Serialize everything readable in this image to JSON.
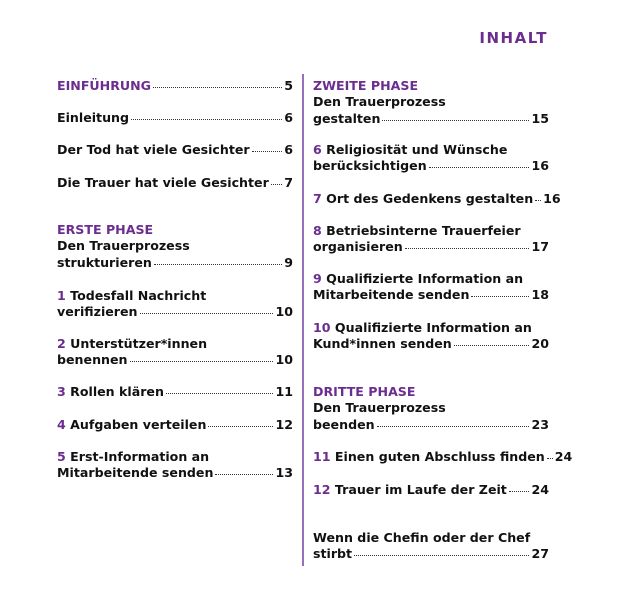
{
  "title": "INHALT",
  "colors": {
    "accent": "#6b2d8f"
  },
  "left": [
    {
      "num": "",
      "lines": [
        "EINFÜHRUNG"
      ],
      "page": "5",
      "heading": true
    },
    {
      "num": "",
      "lines": [
        "Einleitung"
      ],
      "page": "6"
    },
    {
      "num": "",
      "lines": [
        "Der Tod hat viele Gesichter"
      ],
      "page": "6"
    },
    {
      "num": "",
      "lines": [
        "Die Trauer hat viele Gesichter"
      ],
      "page": "7"
    },
    {
      "phase": "ERSTE PHASE",
      "num": "",
      "lines": [
        "Den Trauerprozess",
        "strukturieren"
      ],
      "page": "9"
    },
    {
      "num": "1",
      "lines": [
        "Todesfall Nachricht",
        "verifizieren"
      ],
      "page": "10"
    },
    {
      "num": "2",
      "lines": [
        "Unterstützer*innen",
        "benennen"
      ],
      "page": "10"
    },
    {
      "num": "3",
      "lines": [
        "Rollen klären"
      ],
      "page": "11"
    },
    {
      "num": "4",
      "lines": [
        "Aufgaben verteilen"
      ],
      "page": "12"
    },
    {
      "num": "5",
      "lines": [
        "Erst-Information an",
        "Mitarbeitende senden"
      ],
      "page": "13"
    }
  ],
  "right": [
    {
      "phase": "ZWEITE PHASE",
      "num": "",
      "lines": [
        "Den Trauerprozess",
        "gestalten"
      ],
      "page": "15"
    },
    {
      "num": "6",
      "lines": [
        "Religiosität und Wünsche",
        "berücksichtigen"
      ],
      "page": "16"
    },
    {
      "num": "7",
      "lines": [
        "Ort des Gedenkens gestalten"
      ],
      "page": "16"
    },
    {
      "num": "8",
      "lines": [
        "Betriebsinterne Trauerfeier",
        "organisieren"
      ],
      "page": "17"
    },
    {
      "num": "9",
      "lines": [
        "Qualifizierte Information an",
        "Mitarbeitende senden"
      ],
      "page": "18"
    },
    {
      "num": "10",
      "lines": [
        "Qualifizierte Information an",
        "Kund*innen senden"
      ],
      "page": "20"
    },
    {
      "phase": "DRITTE PHASE",
      "num": "",
      "lines": [
        "Den Trauerprozess",
        "beenden"
      ],
      "page": "23"
    },
    {
      "num": "11",
      "lines": [
        "Einen guten Abschluss finden"
      ],
      "page": "24"
    },
    {
      "num": "12",
      "lines": [
        "Trauer im Laufe der Zeit"
      ],
      "page": "24"
    },
    {
      "num": "",
      "lines": [
        "Wenn die Chefin oder der Chef",
        "stirbt"
      ],
      "page": "27"
    }
  ]
}
